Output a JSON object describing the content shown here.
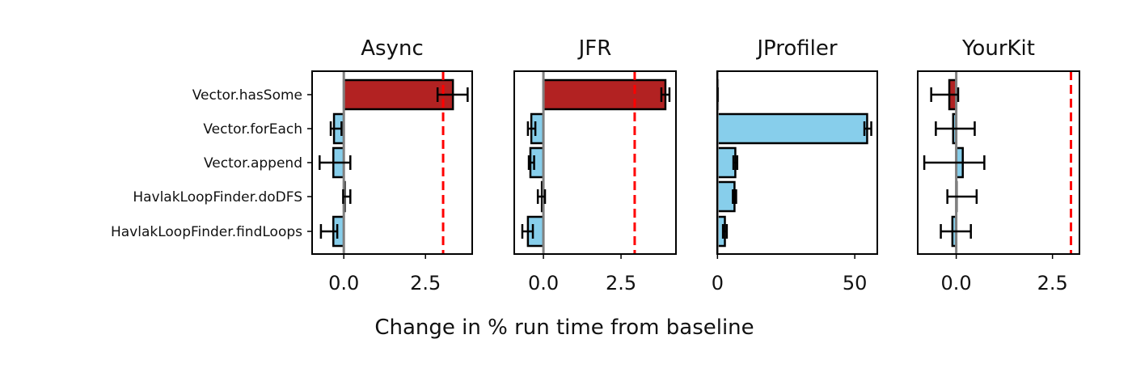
{
  "chart_data": {
    "type": "bar",
    "orientation": "horizontal",
    "xlabel": "Change in % run time from baseline",
    "categories": [
      "Vector.hasSome",
      "Vector.forEach",
      "Vector.append",
      "HavlakLoopFinder.doDFS",
      "HavlakLoopFinder.findLoops"
    ],
    "colors": {
      "positive_highlight": "#b22222",
      "other": "#87ceeb",
      "zero_line": "#808080",
      "threshold_line": "#ff0000"
    },
    "panels": [
      {
        "title": "Async",
        "xlim": [
          -0.97,
          3.93
        ],
        "ticks": [
          0,
          2.5
        ],
        "tick_labels": [
          "0.0",
          "2.5"
        ],
        "threshold": 3.04,
        "values": [
          3.34,
          -0.3,
          -0.32,
          0.03,
          -0.32
        ],
        "err_low": [
          2.87,
          -0.4,
          -0.74,
          -0.02,
          -0.7
        ],
        "err_high": [
          3.79,
          -0.07,
          0.2,
          0.2,
          -0.2
        ],
        "highlight": [
          true,
          false,
          false,
          false,
          false
        ]
      },
      {
        "title": "JFR",
        "xlim": [
          -0.94,
          4.27
        ],
        "ticks": [
          0,
          2.5
        ],
        "tick_labels": [
          "0.0",
          "2.5"
        ],
        "threshold": 2.94,
        "values": [
          3.93,
          -0.39,
          -0.42,
          -0.05,
          -0.5
        ],
        "err_low": [
          3.8,
          -0.5,
          -0.47,
          -0.18,
          -0.68
        ],
        "err_high": [
          4.06,
          -0.26,
          -0.3,
          0.05,
          -0.34
        ],
        "highlight": [
          true,
          false,
          false,
          false,
          false
        ]
      },
      {
        "title": "JProfiler",
        "xlim": [
          -0.1,
          58.2
        ],
        "ticks": [
          0,
          50
        ],
        "tick_labels": [
          "0",
          "50"
        ],
        "threshold": null,
        "values": [
          0,
          54.5,
          6.5,
          6.2,
          2.7
        ],
        "err_low": [
          0,
          53.5,
          5.8,
          5.6,
          2.0
        ],
        "err_high": [
          0,
          56,
          7.2,
          6.8,
          3.4
        ],
        "highlight": [
          false,
          false,
          false,
          false,
          false
        ]
      },
      {
        "title": "YourKit",
        "xlim": [
          -1.0,
          3.2
        ],
        "ticks": [
          0,
          2.5
        ],
        "tick_labels": [
          "0.0",
          "2.5"
        ],
        "threshold": 2.98,
        "values": [
          -0.18,
          -0.08,
          0.17,
          0.0,
          -0.1
        ],
        "err_low": [
          -0.65,
          -0.53,
          -0.83,
          -0.23,
          -0.4
        ],
        "err_high": [
          0.05,
          0.48,
          0.73,
          0.53,
          0.38
        ],
        "highlight": [
          true,
          false,
          false,
          false,
          false
        ]
      }
    ]
  }
}
